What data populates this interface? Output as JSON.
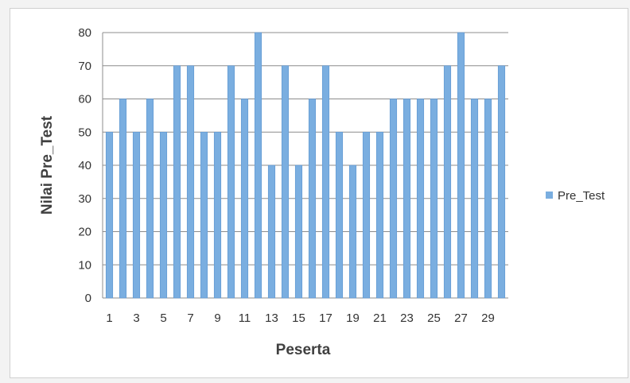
{
  "chart_data": {
    "type": "bar",
    "categories": [
      "1",
      "2",
      "3",
      "4",
      "5",
      "6",
      "7",
      "8",
      "9",
      "10",
      "11",
      "12",
      "13",
      "14",
      "15",
      "16",
      "17",
      "18",
      "19",
      "20",
      "21",
      "22",
      "23",
      "24",
      "25",
      "26",
      "27",
      "28",
      "29",
      "30"
    ],
    "tick_labels": [
      "1",
      "3",
      "5",
      "7",
      "9",
      "11",
      "13",
      "15",
      "17",
      "19",
      "21",
      "23",
      "25",
      "27",
      "29"
    ],
    "series": [
      {
        "name": "Pre_Test",
        "values": [
          50,
          60,
          50,
          60,
          50,
          70,
          70,
          50,
          50,
          70,
          60,
          80,
          40,
          70,
          40,
          60,
          70,
          50,
          40,
          50,
          50,
          60,
          60,
          60,
          60,
          70,
          80,
          60,
          60,
          70
        ]
      }
    ],
    "xlabel": "Peserta",
    "ylabel": "Nilai Pre_Test",
    "ylim": [
      0,
      80
    ],
    "yticks": [
      0,
      10,
      20,
      30,
      40,
      50,
      60,
      70,
      80
    ],
    "grid": true,
    "legend_position": "right",
    "colors": {
      "bar": "#7aaee0",
      "bar_edge": "#5d95cf",
      "grid": "#8c8c8c",
      "text": "#333333"
    }
  }
}
